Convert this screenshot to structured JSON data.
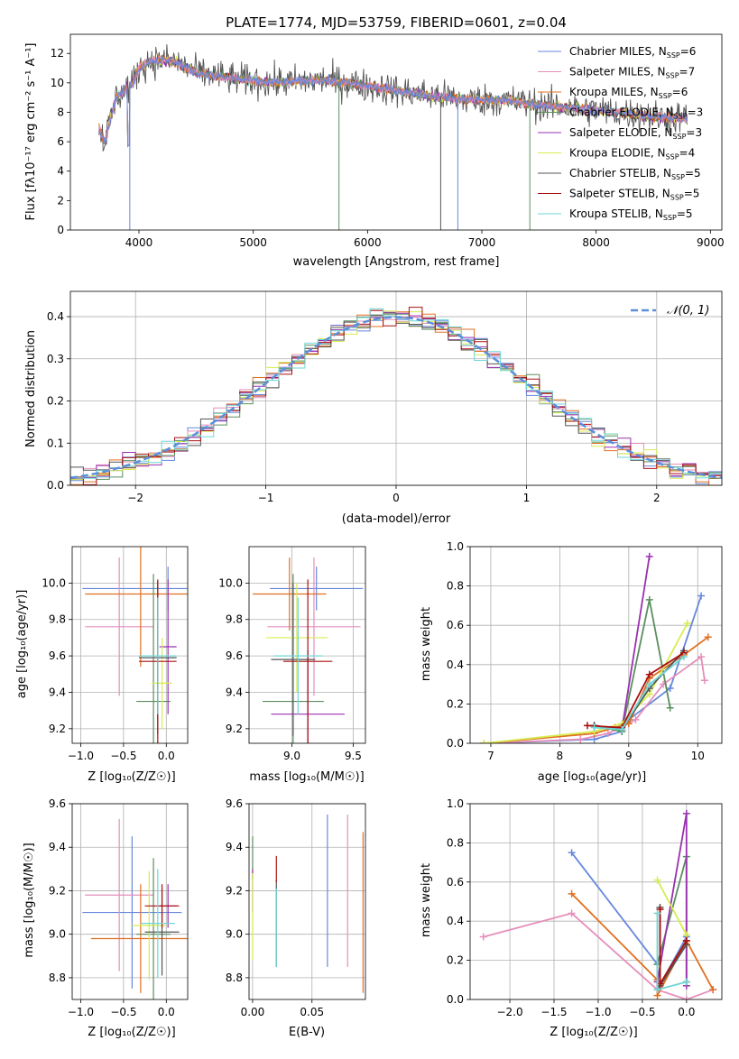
{
  "colors": {
    "chabrier_miles": "#6688dd",
    "salpeter_miles": "#e58fbb",
    "kroupa_miles": "#e07020",
    "chabrier_elodie": "#5a8f5f",
    "salpeter_elodie": "#9a30b0",
    "kroupa_elodie": "#d8ec50",
    "chabrier_stelib": "#555555",
    "salpeter_stelib": "#aa1010",
    "kroupa_stelib": "#6fd6d6",
    "normal_curve": "#5b8fdc"
  },
  "chart_data": [
    {
      "id": "spectrum",
      "type": "line",
      "title": "PLATE=1774, MJD=53759, FIBERID=0601, z=0.04",
      "xlabel": "wavelength [Angstrom, rest frame]",
      "ylabel": "Flux [fλ10⁻¹⁷ erg cm⁻² s⁻¹ A⁻¹]",
      "xlim": [
        3400,
        9100
      ],
      "ylim": [
        0,
        13.3
      ],
      "xticks": [
        "4000",
        "5000",
        "6000",
        "7000",
        "8000",
        "9000"
      ],
      "yticks": [
        "0",
        "2",
        "4",
        "6",
        "8",
        "10",
        "12"
      ],
      "legend_position": "upper-right",
      "legend": [
        "Chabrier MILES, N_SSP=6",
        "Salpeter MILES, N_SSP=7",
        "Kroupa MILES, N_SSP=6",
        "Chabrier ELODIE, N_SSP=3",
        "Salpeter ELODIE, N_SSP=3",
        "Kroupa ELODIE, N_SSP=4",
        "Chabrier STELIB, N_SSP=5",
        "Salpeter STELIB, N_SSP=5",
        "Kroupa STELIB, N_SSP=5"
      ],
      "continuum": [
        [
          3650,
          7.0
        ],
        [
          3700,
          6.0
        ],
        [
          3800,
          9.0
        ],
        [
          3950,
          10.0
        ],
        [
          4000,
          11.0
        ],
        [
          4100,
          11.5
        ],
        [
          4300,
          11.5
        ],
        [
          4500,
          10.7
        ],
        [
          4800,
          10.3
        ],
        [
          5200,
          10.0
        ],
        [
          5600,
          10.2
        ],
        [
          6000,
          9.8
        ],
        [
          6400,
          9.3
        ],
        [
          6800,
          8.9
        ],
        [
          7200,
          8.8
        ],
        [
          7500,
          8.5
        ],
        [
          7900,
          8.2
        ],
        [
          8300,
          7.9
        ],
        [
          8500,
          7.7
        ],
        [
          8800,
          7.6
        ]
      ],
      "model_range": [
        3650,
        8800
      ],
      "data_range": [
        3650,
        8800
      ],
      "model_ranges": [
        [
          3650,
          7400
        ],
        [
          3900,
          6800
        ],
        [
          3650,
          8800
        ]
      ]
    },
    {
      "id": "residuals",
      "type": "histogram",
      "xlabel": "(data-model)/error",
      "ylabel": "Normed distribution",
      "xlim": [
        -2.5,
        2.5
      ],
      "ylim": [
        0,
        0.46
      ],
      "xticks": [
        "−2",
        "−1",
        "0",
        "1",
        "2"
      ],
      "yticks": [
        "0.0",
        "0.1",
        "0.2",
        "0.3",
        "0.4"
      ],
      "legend": [
        "𝒩(0, 1)"
      ],
      "legend_position": "upper-right",
      "bin_width": 0.1,
      "grid": true
    },
    {
      "id": "age_vs_Z",
      "type": "errorbar",
      "xlabel": "Z [log₁₀(Z/Z☉)]",
      "ylabel": "age  [log₁₀(age/yr)]",
      "xlim": [
        -1.1,
        0.25
      ],
      "ylim": [
        9.12,
        10.2
      ],
      "xticks": [
        "−1.0",
        "−0.5",
        "0.0"
      ],
      "yticks": [
        "9.2",
        "9.4",
        "9.6",
        "9.8",
        "10.0"
      ],
      "points": [
        {
          "x": 0.02,
          "y": 9.97,
          "xerr": 1.0,
          "yerr": 0.12
        },
        {
          "x": -0.55,
          "y": 9.76,
          "xerr": 0.4,
          "yerr": 0.38
        },
        {
          "x": -0.3,
          "y": 9.94,
          "xerr": 0.65,
          "yerr": 0.4
        },
        {
          "x": -0.15,
          "y": 9.35,
          "xerr": 0.2,
          "yerr": 0.7
        },
        {
          "x": 0.02,
          "y": 9.65,
          "xerr": 0.1,
          "yerr": 0.37
        },
        {
          "x": -0.05,
          "y": 9.45,
          "xerr": 0.12,
          "yerr": 0.25
        },
        {
          "x": -0.1,
          "y": 9.59,
          "xerr": 0.22,
          "yerr": 0.42
        },
        {
          "x": -0.1,
          "y": 9.57,
          "xerr": 0.22,
          "yerr": 0.45
        },
        {
          "x": -0.1,
          "y": 9.6,
          "xerr": 0.22,
          "yerr": 0.32
        }
      ]
    },
    {
      "id": "age_vs_mass",
      "type": "errorbar",
      "xlabel": "mass [log₁₀(M/M☉)]",
      "ylabel": "",
      "xlim": [
        8.65,
        9.6
      ],
      "ylim": [
        9.12,
        10.2
      ],
      "xticks": [
        "9.0",
        "9.5"
      ],
      "yticks": [
        "9.2",
        "9.4",
        "9.6",
        "9.8",
        "10.0"
      ],
      "points": [
        {
          "x": 9.2,
          "y": 9.97,
          "xerr": 0.38,
          "yerr": 0.12
        },
        {
          "x": 9.18,
          "y": 9.76,
          "xerr": 0.38,
          "yerr": 0.38
        },
        {
          "x": 8.98,
          "y": 9.94,
          "xerr": 0.3,
          "yerr": 0.2
        },
        {
          "x": 9.01,
          "y": 9.35,
          "xerr": 0.25,
          "yerr": 0.7
        },
        {
          "x": 9.13,
          "y": 9.28,
          "xerr": 0.3,
          "yerr": 0.35
        },
        {
          "x": 9.04,
          "y": 9.7,
          "xerr": 0.25,
          "yerr": 0.3
        },
        {
          "x": 9.01,
          "y": 9.58,
          "xerr": 0.18,
          "yerr": 0.42
        },
        {
          "x": 9.13,
          "y": 9.57,
          "xerr": 0.2,
          "yerr": 0.45
        },
        {
          "x": 9.05,
          "y": 9.6,
          "xerr": 0.2,
          "yerr": 0.32
        }
      ]
    },
    {
      "id": "weight_vs_age",
      "type": "line",
      "xlabel": "age  [log₁₀(age/yr)]",
      "ylabel": "mass weight",
      "xlim": [
        6.7,
        10.35
      ],
      "ylim": [
        0,
        1.0
      ],
      "xticks": [
        "7",
        "8",
        "9",
        "10"
      ],
      "yticks": [
        "0.0",
        "0.2",
        "0.4",
        "0.6",
        "0.8",
        "1.0"
      ],
      "series": [
        {
          "x": [
            6.9,
            8.5,
            8.9,
            9.0,
            9.6,
            10.05
          ],
          "y": [
            0.0,
            0.02,
            0.06,
            0.12,
            0.28,
            0.75
          ]
        },
        {
          "x": [
            6.9,
            8.3,
            8.7,
            9.1,
            9.5,
            10.05,
            10.1
          ],
          "y": [
            0.0,
            0.02,
            0.05,
            0.12,
            0.3,
            0.44,
            0.32
          ]
        },
        {
          "x": [
            6.9,
            8.5,
            8.8,
            9.0,
            9.3,
            9.8,
            10.15
          ],
          "y": [
            0.0,
            0.05,
            0.08,
            0.1,
            0.33,
            0.45,
            0.54
          ]
        },
        {
          "x": [
            8.5,
            8.9,
            9.3,
            9.6
          ],
          "y": [
            0.09,
            0.06,
            0.73,
            0.18
          ]
        },
        {
          "x": [
            8.5,
            8.9,
            9.3
          ],
          "y": [
            0.09,
            0.07,
            0.95
          ]
        },
        {
          "x": [
            6.9,
            8.5,
            8.9,
            9.3,
            9.85
          ],
          "y": [
            0.0,
            0.06,
            0.1,
            0.25,
            0.61
          ]
        },
        {
          "x": [
            8.5,
            8.9,
            9.3,
            9.8
          ],
          "y": [
            0.09,
            0.07,
            0.28,
            0.47
          ]
        },
        {
          "x": [
            8.4,
            8.9,
            9.3,
            9.8
          ],
          "y": [
            0.09,
            0.08,
            0.35,
            0.46
          ]
        },
        {
          "x": [
            8.5,
            8.9,
            9.3,
            9.8
          ],
          "y": [
            0.08,
            0.07,
            0.3,
            0.44
          ]
        }
      ]
    },
    {
      "id": "mass_vs_Z",
      "type": "errorbar",
      "xlabel": "Z [log₁₀(Z/Z☉)]",
      "ylabel": "mass [log₁₀(M/M☉)]",
      "xlim": [
        -1.1,
        0.25
      ],
      "ylim": [
        8.7,
        9.6
      ],
      "xticks": [
        "−1.0",
        "−0.5",
        "0.0"
      ],
      "yticks": [
        "8.8",
        "9.0",
        "9.2",
        "9.4",
        "9.6"
      ],
      "points": [
        {
          "x": -0.4,
          "y": 9.1,
          "xerr": 0.58,
          "yerr": 0.35
        },
        {
          "x": -0.55,
          "y": 9.18,
          "xerr": 0.4,
          "yerr": 0.35
        },
        {
          "x": -0.3,
          "y": 8.98,
          "xerr": 0.58,
          "yerr": 0.25
        },
        {
          "x": -0.15,
          "y": 9.0,
          "xerr": 0.2,
          "yerr": 0.35
        },
        {
          "x": 0.02,
          "y": 9.13,
          "xerr": 0.1,
          "yerr": 0.1
        },
        {
          "x": -0.2,
          "y": 9.04,
          "xerr": 0.2,
          "yerr": 0.25
        },
        {
          "x": -0.05,
          "y": 9.01,
          "xerr": 0.2,
          "yerr": 0.2
        },
        {
          "x": -0.05,
          "y": 9.13,
          "xerr": 0.2,
          "yerr": 0.1
        },
        {
          "x": -0.1,
          "y": 9.05,
          "xerr": 0.2,
          "yerr": 0.25
        }
      ]
    },
    {
      "id": "mass_vs_ebv",
      "type": "errorbar",
      "xlabel": "E(B-V)",
      "ylabel": "",
      "xlim": [
        -0.003,
        0.095
      ],
      "ylim": [
        8.7,
        9.6
      ],
      "xticks": [
        "0.00",
        "0.05"
      ],
      "yticks": [
        "8.8",
        "9.0",
        "9.2",
        "9.4",
        "9.6"
      ],
      "points": [
        {
          "x": 0.063,
          "y": 9.2,
          "yerr": 0.35
        },
        {
          "x": 0.08,
          "y": 9.2,
          "yerr": 0.35
        },
        {
          "x": 0.093,
          "y": 9.1,
          "yerr": 0.37
        },
        {
          "x": 0.0,
          "y": 9.35,
          "yerr": 0.1
        },
        {
          "x": 0.0,
          "y": 9.2,
          "yerr": 0.1
        },
        {
          "x": 0.0,
          "y": 9.08,
          "yerr": 0.2
        },
        {
          "x": 0.02,
          "y": 9.05,
          "yerr": 0.2
        },
        {
          "x": 0.02,
          "y": 9.3,
          "yerr": 0.06
        },
        {
          "x": 0.02,
          "y": 9.03,
          "yerr": 0.18
        }
      ]
    },
    {
      "id": "weight_vs_Z",
      "type": "line",
      "xlabel": "Z [log₁₀(Z/Z☉)]",
      "ylabel": "mass weight",
      "xlim": [
        -2.45,
        0.4
      ],
      "ylim": [
        0,
        1.0
      ],
      "xticks": [
        "−2.0",
        "−1.5",
        "−1.0",
        "−0.5",
        "0.0"
      ],
      "yticks": [
        "0.0",
        "0.2",
        "0.4",
        "0.6",
        "0.8",
        "1.0"
      ],
      "series": [
        {
          "x": [
            -1.3,
            -0.33,
            -0.33,
            0.0
          ],
          "y": [
            0.75,
            0.18,
            0.05,
            0.32
          ]
        },
        {
          "x": [
            -2.3,
            -1.3,
            -0.33,
            0.0,
            0.3
          ],
          "y": [
            0.32,
            0.44,
            0.05,
            0.0,
            0.05
          ]
        },
        {
          "x": [
            -1.3,
            -0.33,
            -0.33,
            0.0,
            0.3
          ],
          "y": [
            0.54,
            0.1,
            0.02,
            0.3,
            0.05
          ]
        },
        {
          "x": [
            -0.33,
            0.0,
            0.0
          ],
          "y": [
            0.18,
            0.73,
            0.09
          ]
        },
        {
          "x": [
            -0.33,
            0.0,
            0.0
          ],
          "y": [
            0.09,
            0.95,
            0.07
          ]
        },
        {
          "x": [
            -0.33,
            0.0
          ],
          "y": [
            0.61,
            0.33
          ]
        },
        {
          "x": [
            -0.3,
            -0.3,
            0.0
          ],
          "y": [
            0.47,
            0.07,
            0.28
          ]
        },
        {
          "x": [
            -0.3,
            -0.3,
            0.0
          ],
          "y": [
            0.46,
            0.08,
            0.3
          ]
        },
        {
          "x": [
            -0.33,
            -0.33,
            0.0
          ],
          "y": [
            0.44,
            0.05,
            0.09
          ]
        }
      ]
    }
  ]
}
